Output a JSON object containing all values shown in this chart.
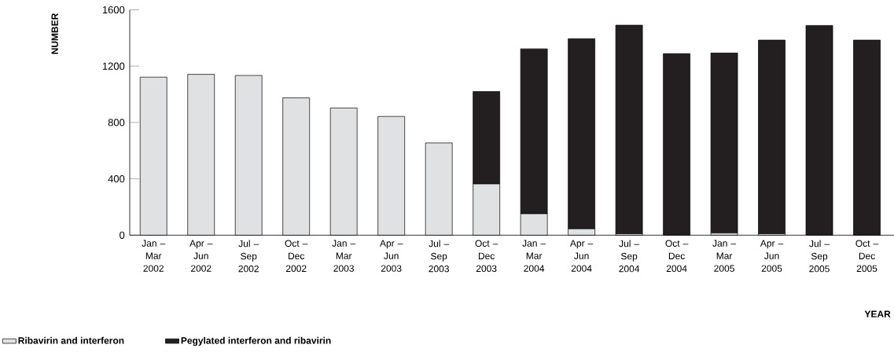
{
  "chart_data": {
    "type": "bar",
    "stacked": true,
    "xlabel": "YEAR",
    "ylabel": "NUMBER",
    "categories": [
      "Jan – Mar 2002",
      "Apr – Jun 2002",
      "Jul – Sep 2002",
      "Oct – Dec 2002",
      "Jan – Mar 2003",
      "Apr – Jun 2003",
      "Jul – Sep 2003",
      "Oct – Dec 2003",
      "Jan – Mar 2004",
      "Apr – Jun 2004",
      "Jul – Sep 2004",
      "Oct – Dec 2004",
      "Jan – Mar 2005",
      "Apr – Jun 2005",
      "Jul – Sep 2005",
      "Oct – Dec 2005"
    ],
    "series": [
      {
        "name": "Ribavirin and interferon",
        "color": "#e0e1e2",
        "values": [
          1122,
          1142,
          1134,
          975,
          903,
          843,
          655,
          364,
          152,
          45,
          10,
          0,
          15,
          10,
          0,
          0
        ]
      },
      {
        "name": "Pegylated interferon and ribavirin",
        "color": "#231f20",
        "values": [
          null,
          null,
          null,
          null,
          null,
          null,
          null,
          656,
          1171,
          1350,
          1481,
          1289,
          1278,
          1375,
          1489,
          1385
        ]
      }
    ],
    "ylim": [
      0,
      1600
    ],
    "yticks": [
      0,
      400,
      800,
      1200,
      1600
    ],
    "legend": "bottom left"
  }
}
